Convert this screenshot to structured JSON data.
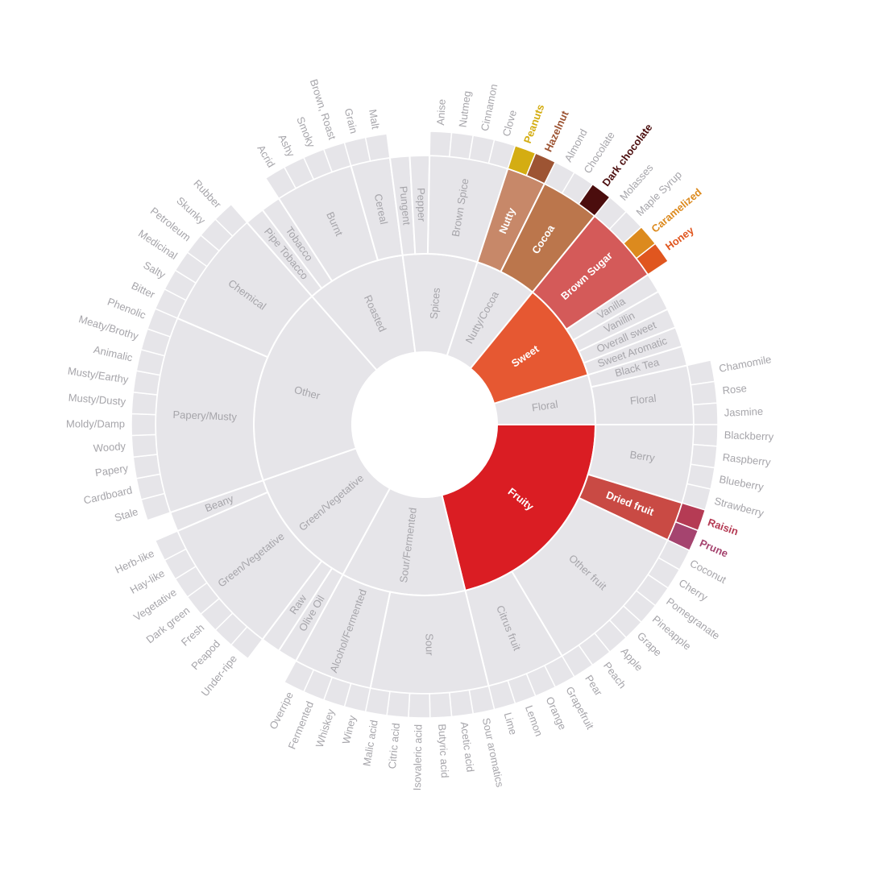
{
  "chart_data": {
    "type": "sunburst",
    "title": "",
    "colors": {
      "inactive": "#e6e5e9",
      "inactive_text": "#a6a5aa",
      "stroke": "#ffffff",
      "active_text": "#ffffff"
    },
    "children": [
      {
        "name": "Floral",
        "children": [
          {
            "name": "Black Tea",
            "value": 1
          },
          {
            "name": "Floral",
            "children": [
              {
                "name": "Chamomile",
                "value": 1
              },
              {
                "name": "Rose",
                "value": 1
              },
              {
                "name": "Jasmine",
                "value": 1
              }
            ]
          }
        ]
      },
      {
        "name": "Fruity",
        "color": "#da1d23",
        "children": [
          {
            "name": "Berry",
            "children": [
              {
                "name": "Blackberry",
                "value": 1
              },
              {
                "name": "Raspberry",
                "value": 1
              },
              {
                "name": "Blueberry",
                "value": 1
              },
              {
                "name": "Strawberry",
                "value": 1
              }
            ]
          },
          {
            "name": "Dried fruit",
            "color": "#c94a44",
            "children": [
              {
                "name": "Raisin",
                "value": 1,
                "color": "#b53b54"
              },
              {
                "name": "Prune",
                "value": 1,
                "color": "#a5446f"
              }
            ]
          },
          {
            "name": "Other fruit",
            "children": [
              {
                "name": "Coconut",
                "value": 1
              },
              {
                "name": "Cherry",
                "value": 1
              },
              {
                "name": "Pomegranate",
                "value": 1
              },
              {
                "name": "Pineapple",
                "value": 1
              },
              {
                "name": "Grape",
                "value": 1
              },
              {
                "name": "Apple",
                "value": 1
              },
              {
                "name": "Peach",
                "value": 1
              },
              {
                "name": "Pear",
                "value": 1
              }
            ]
          },
          {
            "name": "Citrus fruit",
            "children": [
              {
                "name": "Grapefruit",
                "value": 1
              },
              {
                "name": "Orange",
                "value": 1
              },
              {
                "name": "Lemon",
                "value": 1
              },
              {
                "name": "Lime",
                "value": 1
              }
            ]
          }
        ]
      },
      {
        "name": "Sour/Fermented",
        "children": [
          {
            "name": "Sour",
            "children": [
              {
                "name": "Sour aromatics",
                "value": 1
              },
              {
                "name": "Acetic acid",
                "value": 1
              },
              {
                "name": "Butyric acid",
                "value": 1
              },
              {
                "name": "Isovaleric acid",
                "value": 1
              },
              {
                "name": "Citric acid",
                "value": 1
              },
              {
                "name": "Malic acid",
                "value": 1
              }
            ]
          },
          {
            "name": "Alcohol/Fermented",
            "children": [
              {
                "name": "Winey",
                "value": 1
              },
              {
                "name": "Whiskey",
                "value": 1
              },
              {
                "name": "Fermented",
                "value": 1
              },
              {
                "name": "Overripe",
                "value": 1
              }
            ]
          }
        ]
      },
      {
        "name": "Green/Vegetative",
        "children": [
          {
            "name": "Olive Oil",
            "value": 1
          },
          {
            "name": "Raw",
            "value": 1
          },
          {
            "name": "Green/Vegetative",
            "children": [
              {
                "name": "Under-ripe",
                "value": 1
              },
              {
                "name": "Peapod",
                "value": 1
              },
              {
                "name": "Fresh",
                "value": 1
              },
              {
                "name": "Dark green",
                "value": 1
              },
              {
                "name": "Vegetative",
                "value": 1
              },
              {
                "name": "Hay-like",
                "value": 1
              },
              {
                "name": "Herb-like",
                "value": 1
              }
            ]
          },
          {
            "name": "Beany",
            "value": 1
          }
        ]
      },
      {
        "name": "Other",
        "children": [
          {
            "name": "Papery/Musty",
            "children": [
              {
                "name": "Stale",
                "value": 1
              },
              {
                "name": "Cardboard",
                "value": 1
              },
              {
                "name": "Papery",
                "value": 1
              },
              {
                "name": "Woody",
                "value": 1
              },
              {
                "name": "Moldy/Damp",
                "value": 1
              },
              {
                "name": "Musty/Dusty",
                "value": 1
              },
              {
                "name": "Musty/Earthy",
                "value": 1
              },
              {
                "name": "Animalic",
                "value": 1
              },
              {
                "name": "Meaty/Brothy",
                "value": 1
              },
              {
                "name": "Phenolic",
                "value": 1
              }
            ]
          },
          {
            "name": "Chemical",
            "children": [
              {
                "name": "Bitter",
                "value": 1
              },
              {
                "name": "Salty",
                "value": 1
              },
              {
                "name": "Medicinal",
                "value": 1
              },
              {
                "name": "Petroleum",
                "value": 1
              },
              {
                "name": "Skunky",
                "value": 1
              },
              {
                "name": "Rubber",
                "value": 1
              }
            ]
          }
        ]
      },
      {
        "name": "Roasted",
        "children": [
          {
            "name": "Pipe Tobacco",
            "value": 1
          },
          {
            "name": "Tobacco",
            "value": 1
          },
          {
            "name": "Burnt",
            "children": [
              {
                "name": "Acrid",
                "value": 1
              },
              {
                "name": "Ashy",
                "value": 1
              },
              {
                "name": "Smoky",
                "value": 1
              },
              {
                "name": "Brown, Roast",
                "value": 1
              }
            ]
          },
          {
            "name": "Cereal",
            "children": [
              {
                "name": "Grain",
                "value": 1
              },
              {
                "name": "Malt",
                "value": 1
              }
            ]
          }
        ]
      },
      {
        "name": "Spices",
        "children": [
          {
            "name": "Pungent",
            "value": 1
          },
          {
            "name": "Pepper",
            "value": 1
          },
          {
            "name": "Brown Spice",
            "children": [
              {
                "name": "Anise",
                "value": 1
              },
              {
                "name": "Nutmeg",
                "value": 1
              },
              {
                "name": "Cinnamon",
                "value": 1
              },
              {
                "name": "Clove",
                "value": 1
              }
            ]
          }
        ]
      },
      {
        "name": "Nutty/Cocoa",
        "children": [
          {
            "name": "Nutty",
            "color": "#c78869",
            "children": [
              {
                "name": "Peanuts",
                "value": 1,
                "color": "#d4ad12"
              },
              {
                "name": "Hazelnut",
                "value": 1,
                "color": "#9d5433"
              }
            ]
          },
          {
            "name": "Cocoa",
            "color": "#bb764c",
            "children": [
              {
                "name": "Almond",
                "value": 1
              },
              {
                "name": "Chocolate",
                "value": 1
              },
              {
                "name": "Dark chocolate",
                "value": 1,
                "color": "#4b0d0d"
              }
            ]
          }
        ]
      },
      {
        "name": "Sweet",
        "color": "#e65832",
        "children": [
          {
            "name": "Brown Sugar",
            "color": "#d45a59",
            "children": [
              {
                "name": "Molasses",
                "value": 1
              },
              {
                "name": "Maple Syrup",
                "value": 1
              },
              {
                "name": "Caramelized",
                "value": 1,
                "color": "#dc8a1e"
              },
              {
                "name": "Honey",
                "value": 1,
                "color": "#e0561f"
              }
            ]
          },
          {
            "name": "Vanilla",
            "value": 1
          },
          {
            "name": "Vanillin",
            "value": 1
          },
          {
            "name": "Overall sweet",
            "value": 1
          },
          {
            "name": "Sweet Aromatic",
            "value": 1
          }
        ]
      }
    ]
  }
}
